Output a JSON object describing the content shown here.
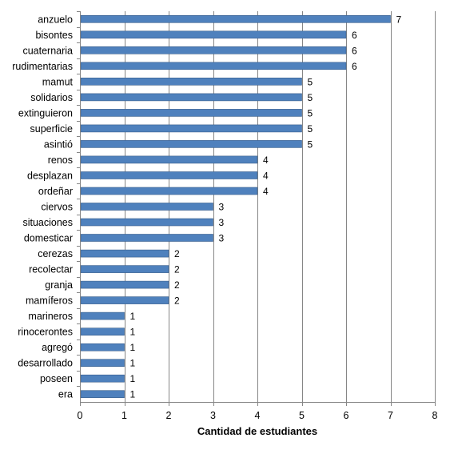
{
  "chart_data": {
    "type": "bar",
    "orientation": "horizontal",
    "categories": [
      "anzuelo",
      "bisontes",
      "cuaternaria",
      "rudimentarias",
      "mamut",
      "solidarios",
      "extinguieron",
      "superficie",
      "asintió",
      "renos",
      "desplazan",
      "ordeñar",
      "ciervos",
      "situaciones",
      "domesticar",
      "cerezas",
      "recolectar",
      "granja",
      "mamíferos",
      "marineros",
      "rinocerontes",
      "agregó",
      "desarrollado",
      "poseen",
      "era"
    ],
    "values": [
      7,
      6,
      6,
      6,
      5,
      5,
      5,
      5,
      5,
      4,
      4,
      4,
      3,
      3,
      3,
      2,
      2,
      2,
      2,
      1,
      1,
      1,
      1,
      1,
      1
    ],
    "xlabel": "Cantidad de estudiantes",
    "ylabel": "",
    "xlim": [
      0,
      8
    ],
    "xticks": [
      0,
      1,
      2,
      3,
      4,
      5,
      6,
      7,
      8
    ],
    "grid": true,
    "bar_color": "#4F81BD",
    "bar_edge_color": "#385D8A",
    "data_labels": true
  }
}
